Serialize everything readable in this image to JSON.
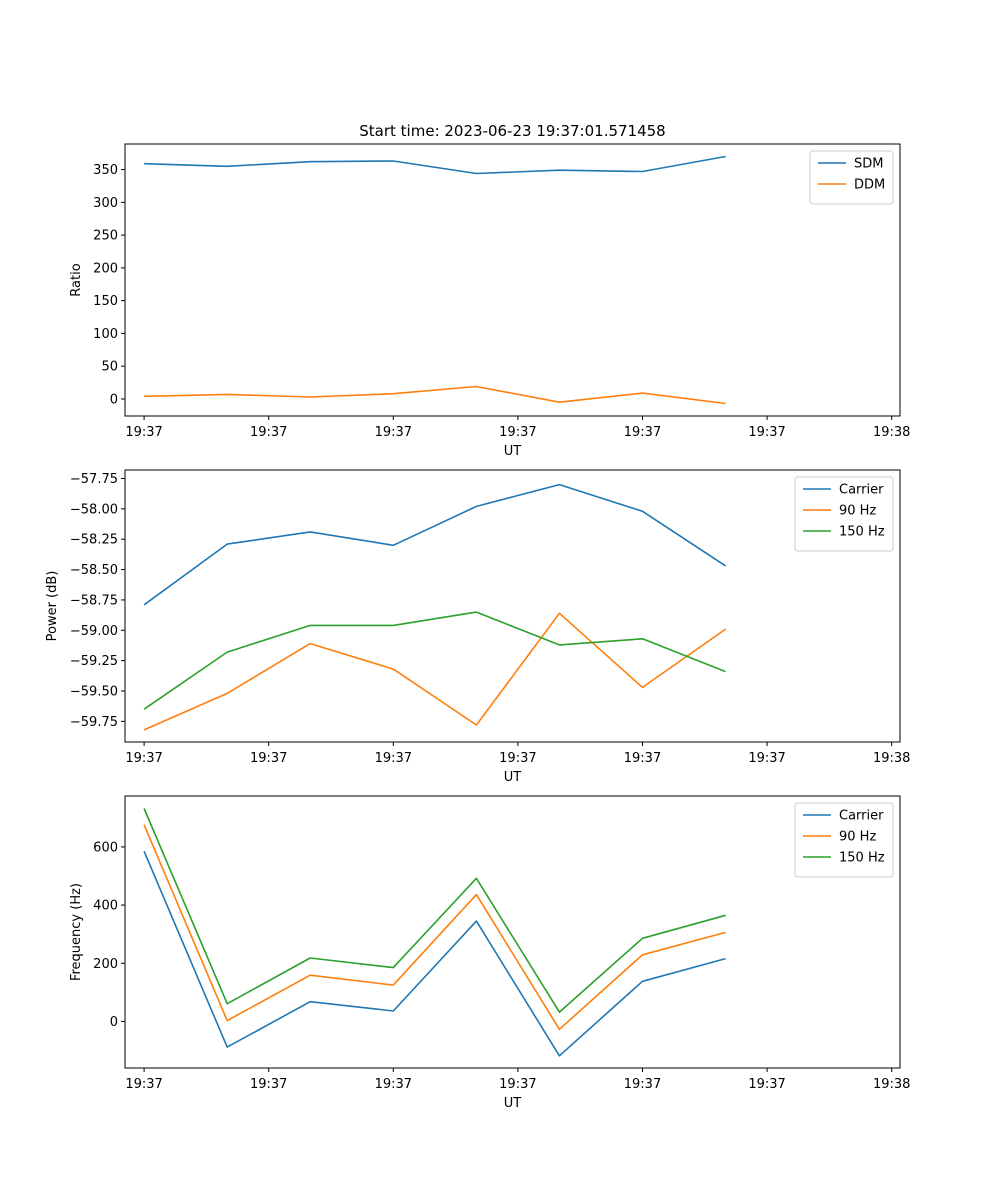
{
  "figure": {
    "title": "Start time: 2023-06-23 19:37:01.571458"
  },
  "chart_data": [
    {
      "type": "line",
      "xlabel": "UT",
      "ylabel": "Ratio",
      "x_tick_labels": [
        "19:37",
        "19:37",
        "19:37",
        "19:37",
        "19:37",
        "19:37",
        "19:38"
      ],
      "xlim": [
        -0.23,
        9.1
      ],
      "ylim": [
        -26,
        389
      ],
      "y_ticks": [
        0,
        50,
        100,
        150,
        200,
        250,
        300,
        350
      ],
      "legend": "upper right",
      "grid": false,
      "x": [
        0,
        1,
        2,
        3,
        4,
        5,
        6,
        7
      ],
      "series": [
        {
          "name": "SDM",
          "color": "#1f77b4",
          "values": [
            359,
            355,
            362,
            363,
            344,
            349,
            347,
            370
          ]
        },
        {
          "name": "DDM",
          "color": "#ff7f0e",
          "values": [
            4,
            7,
            3,
            8,
            19,
            -5,
            9,
            -7
          ]
        }
      ]
    },
    {
      "type": "line",
      "xlabel": "UT",
      "ylabel": "Power (dB)",
      "x_tick_labels": [
        "19:37",
        "19:37",
        "19:37",
        "19:37",
        "19:37",
        "19:37",
        "19:38"
      ],
      "xlim": [
        -0.23,
        9.1
      ],
      "ylim": [
        -59.92,
        -57.68
      ],
      "y_ticks": [
        -59.75,
        -59.5,
        -59.25,
        -59.0,
        -58.75,
        -58.5,
        -58.25,
        -58.0,
        -57.75
      ],
      "y_tick_labels": [
        "−59.75",
        "−59.50",
        "−59.25",
        "−59.00",
        "−58.75",
        "−58.50",
        "−58.25",
        "−58.00",
        "−57.75"
      ],
      "legend": "upper right",
      "grid": false,
      "x": [
        0,
        1,
        2,
        3,
        4,
        5,
        6,
        7
      ],
      "series": [
        {
          "name": "Carrier",
          "color": "#1f77b4",
          "values": [
            -58.79,
            -58.29,
            -58.19,
            -58.3,
            -57.98,
            -57.8,
            -58.02,
            -58.47
          ]
        },
        {
          "name": "90 Hz",
          "color": "#ff7f0e",
          "values": [
            -59.82,
            -59.52,
            -59.11,
            -59.32,
            -59.78,
            -58.86,
            -59.47,
            -58.99
          ]
        },
        {
          "name": "150 Hz",
          "color": "#2ca02c",
          "values": [
            -59.65,
            -59.18,
            -58.96,
            -58.96,
            -58.85,
            -59.12,
            -59.07,
            -59.34
          ]
        }
      ]
    },
    {
      "type": "line",
      "xlabel": "UT",
      "ylabel": "Frequency (Hz)",
      "x_tick_labels": [
        "19:37",
        "19:37",
        "19:37",
        "19:37",
        "19:37",
        "19:37",
        "19:38"
      ],
      "xlim": [
        -0.23,
        9.1
      ],
      "ylim": [
        -160,
        775
      ],
      "y_ticks": [
        0,
        200,
        400,
        600
      ],
      "legend": "upper right",
      "grid": false,
      "x": [
        0,
        1,
        2,
        3,
        4,
        5,
        6,
        7
      ],
      "series": [
        {
          "name": "Carrier",
          "color": "#1f77b4",
          "values": [
            585,
            -88,
            68,
            36,
            345,
            -118,
            138,
            216
          ]
        },
        {
          "name": "90 Hz",
          "color": "#ff7f0e",
          "values": [
            676,
            3,
            159,
            125,
            436,
            -27,
            229,
            306
          ]
        },
        {
          "name": "150 Hz",
          "color": "#2ca02c",
          "values": [
            732,
            61,
            218,
            185,
            492,
            32,
            286,
            365
          ]
        }
      ]
    }
  ]
}
